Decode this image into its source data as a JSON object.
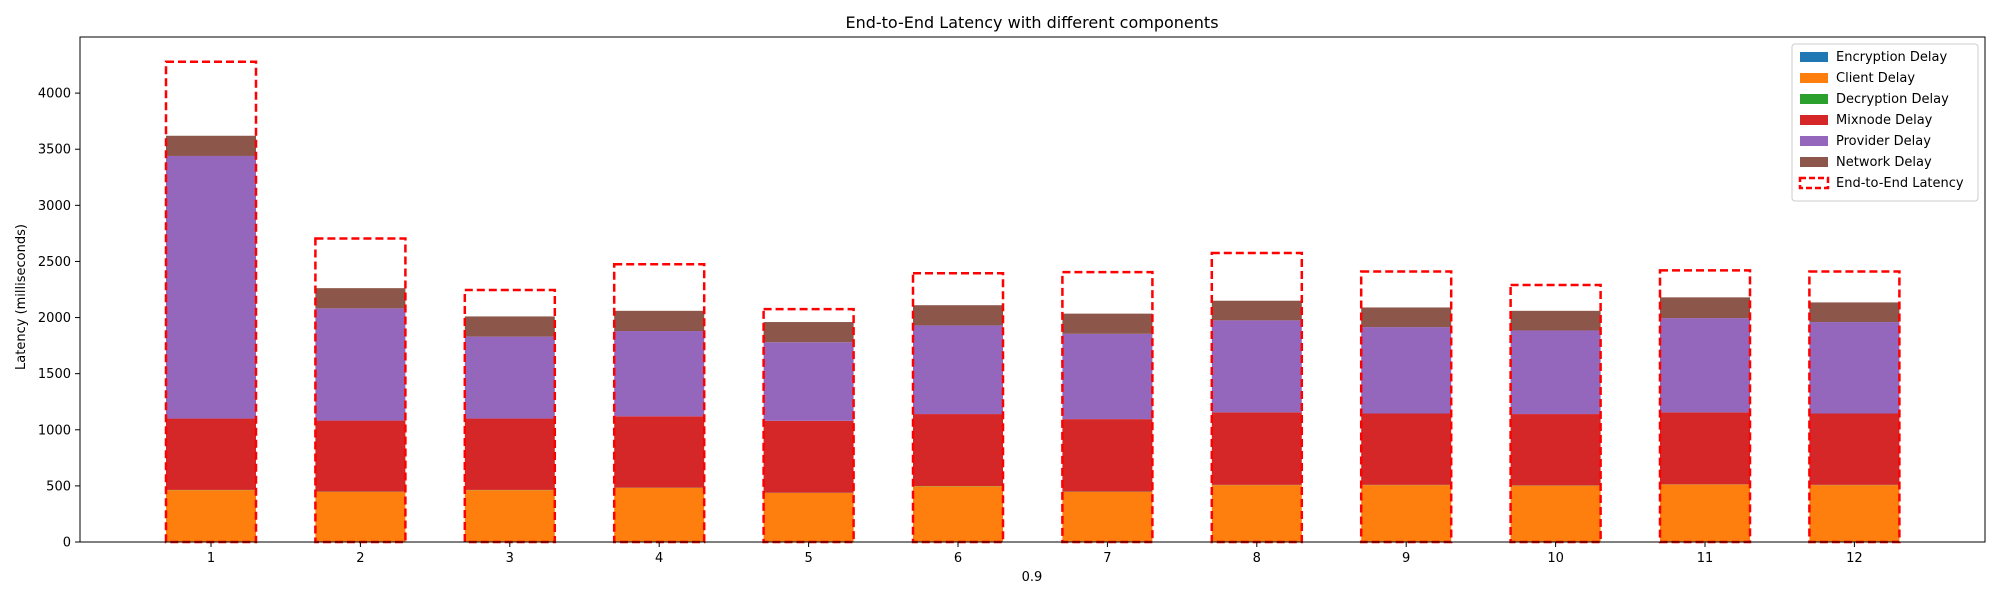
{
  "chart_data": {
    "type": "bar",
    "title": "End-to-End Latency with different components",
    "xlabel": "0.9",
    "ylabel": "Latency (milliseconds)",
    "categories": [
      "1",
      "2",
      "3",
      "4",
      "5",
      "6",
      "7",
      "8",
      "9",
      "10",
      "11",
      "12"
    ],
    "ylim": [
      0,
      4500
    ],
    "yticks": [
      0,
      500,
      1000,
      1500,
      2000,
      2500,
      3000,
      3500,
      4000
    ],
    "stacked": true,
    "series": [
      {
        "name": "Encryption Delay",
        "color": "#1f77b4",
        "values": [
          2,
          2,
          2,
          2,
          2,
          2,
          2,
          2,
          2,
          2,
          2,
          2
        ]
      },
      {
        "name": "Client Delay",
        "color": "#ff7f0e",
        "values": [
          460,
          445,
          460,
          480,
          435,
          495,
          445,
          505,
          505,
          500,
          510,
          505
        ]
      },
      {
        "name": "Decryption Delay",
        "color": "#2ca02c",
        "values": [
          2,
          2,
          2,
          2,
          2,
          2,
          2,
          2,
          2,
          2,
          2,
          2
        ]
      },
      {
        "name": "Mixnode Delay",
        "color": "#d62728",
        "values": [
          636,
          633,
          636,
          636,
          641,
          641,
          646,
          646,
          636,
          636,
          641,
          636
        ]
      },
      {
        "name": "Provider Delay",
        "color": "#9467bd",
        "values": [
          2340,
          1000,
          730,
          760,
          700,
          790,
          760,
          820,
          770,
          745,
          840,
          815
        ]
      },
      {
        "name": "Network Delay",
        "color": "#8c564b",
        "values": [
          180,
          180,
          180,
          180,
          180,
          180,
          180,
          175,
          175,
          175,
          185,
          175
        ]
      }
    ],
    "end_to_end": {
      "name": "End-to-End Latency",
      "color": "#ff0000",
      "values": [
        4280,
        2705,
        2245,
        2475,
        2075,
        2395,
        2405,
        2575,
        2410,
        2290,
        2420,
        2410
      ]
    },
    "legend_position": "top-right",
    "grid": false
  }
}
